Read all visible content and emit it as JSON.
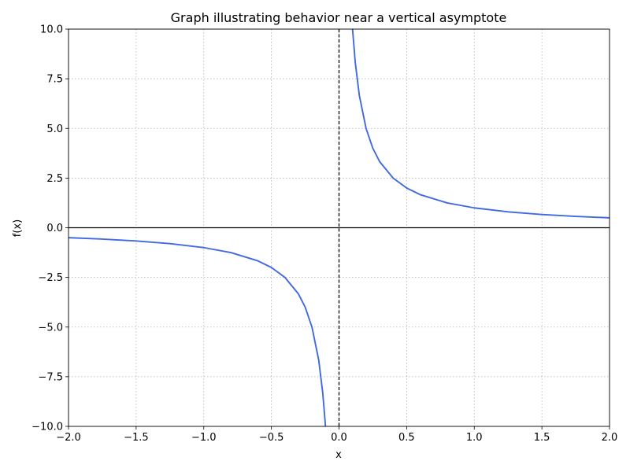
{
  "chart_data": {
    "type": "line",
    "title": "Graph illustrating behavior near a vertical asymptote",
    "xlabel": "x",
    "ylabel": "f(x)",
    "xlim": [
      -2.0,
      2.0
    ],
    "ylim": [
      -10.0,
      10.0
    ],
    "grid": true,
    "x_ticks": [
      -2.0,
      -1.5,
      -1.0,
      -0.5,
      0.0,
      0.5,
      1.0,
      1.5,
      2.0
    ],
    "x_tick_labels": [
      "−2.0",
      "−1.5",
      "−1.0",
      "−0.5",
      "0.0",
      "0.5",
      "1.0",
      "1.5",
      "2.0"
    ],
    "y_ticks": [
      -10.0,
      -7.5,
      -5.0,
      -2.5,
      0.0,
      2.5,
      5.0,
      7.5,
      10.0
    ],
    "y_tick_labels": [
      "−10.0",
      "−7.5",
      "−5.0",
      "−2.5",
      "0.0",
      "2.5",
      "5.0",
      "7.5",
      "10.0"
    ],
    "colors": {
      "curve": "#4169e1",
      "asymptote": "#000000",
      "x_axis_line": "#000000"
    },
    "series": [
      {
        "x": [
          -2.0,
          -1.75,
          -1.5,
          -1.25,
          -1.0,
          -0.8,
          -0.6,
          -0.5,
          -0.4,
          -0.3,
          -0.25,
          -0.2,
          -0.15,
          -0.12,
          -0.1
        ],
        "y": [
          -0.5,
          -0.571,
          -0.667,
          -0.8,
          -1.0,
          -1.25,
          -1.667,
          -2.0,
          -2.5,
          -3.333,
          -4.0,
          -5.0,
          -6.667,
          -8.333,
          -10.0
        ]
      },
      {
        "x": [
          0.1,
          0.12,
          0.15,
          0.2,
          0.25,
          0.3,
          0.4,
          0.5,
          0.6,
          0.8,
          1.0,
          1.25,
          1.5,
          1.75,
          2.0
        ],
        "y": [
          10.0,
          8.333,
          6.667,
          5.0,
          4.0,
          3.333,
          2.5,
          2.0,
          1.667,
          1.25,
          1.0,
          0.8,
          0.667,
          0.571,
          0.5
        ]
      }
    ],
    "vertical_asymptote_x": 0.0,
    "horizontal_reference_y": 0.0
  }
}
